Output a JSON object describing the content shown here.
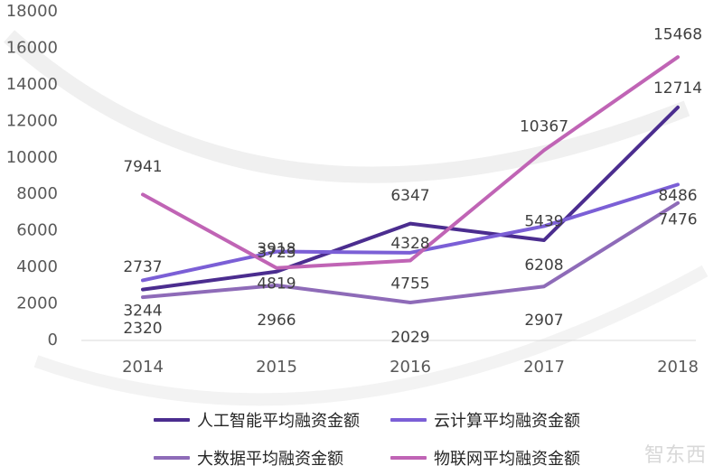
{
  "chart_data": {
    "type": "line",
    "x": [
      "2014",
      "2015",
      "2016",
      "2017",
      "2018"
    ],
    "ylim": [
      0,
      18000
    ],
    "yticks": [
      "0",
      "2000",
      "4000",
      "6000",
      "8000",
      "10000",
      "12000",
      "14000",
      "16000",
      "18000"
    ],
    "grid": false,
    "legend_position": "bottom",
    "series": [
      {
        "name": "人工智能平均融资金额",
        "color": "#4b2d8f",
        "values": [
          2737,
          3723,
          6347,
          5439,
          12714
        ]
      },
      {
        "name": "云计算平均融资金额",
        "color": "#7b5fd6",
        "values": [
          3244,
          4819,
          4755,
          6208,
          8486
        ]
      },
      {
        "name": "大数据平均融资金额",
        "color": "#8e6bb8",
        "values": [
          2320,
          2966,
          2029,
          2907,
          7476
        ]
      },
      {
        "name": "物联网平均融资金额",
        "color": "#c064b5",
        "values": [
          7941,
          3918,
          4328,
          10367,
          15468
        ]
      }
    ],
    "data_labels": [
      {
        "text": "7941",
        "x": "2014",
        "y": 9500
      },
      {
        "text": "2737",
        "x": "2014",
        "y": 4000
      },
      {
        "text": "3244",
        "x": "2014",
        "y": 1600
      },
      {
        "text": "2320",
        "x": "2014",
        "y": 650
      },
      {
        "text": "3918",
        "x": "2015",
        "y": 5000
      },
      {
        "text": "3723",
        "x": "2015",
        "y": 4800
      },
      {
        "text": "4819",
        "x": "2015",
        "y": 3100
      },
      {
        "text": "2966",
        "x": "2015",
        "y": 1100
      },
      {
        "text": "6347",
        "x": "2016",
        "y": 7900
      },
      {
        "text": "4328",
        "x": "2016",
        "y": 5300
      },
      {
        "text": "4755",
        "x": "2016",
        "y": 3100
      },
      {
        "text": "2029",
        "x": "2016",
        "y": 150
      },
      {
        "text": "10367",
        "x": "2017",
        "y": 11700
      },
      {
        "text": "5439",
        "x": "2017",
        "y": 6500
      },
      {
        "text": "6208",
        "x": "2017",
        "y": 4100
      },
      {
        "text": "2907",
        "x": "2017",
        "y": 1100
      },
      {
        "text": "15468",
        "x": "2018",
        "y": 16750
      },
      {
        "text": "12714",
        "x": "2018",
        "y": 13800
      },
      {
        "text": "8486",
        "x": "2018",
        "y": 7900
      },
      {
        "text": "7476",
        "x": "2018",
        "y": 6600
      }
    ]
  },
  "watermark": "智东西"
}
